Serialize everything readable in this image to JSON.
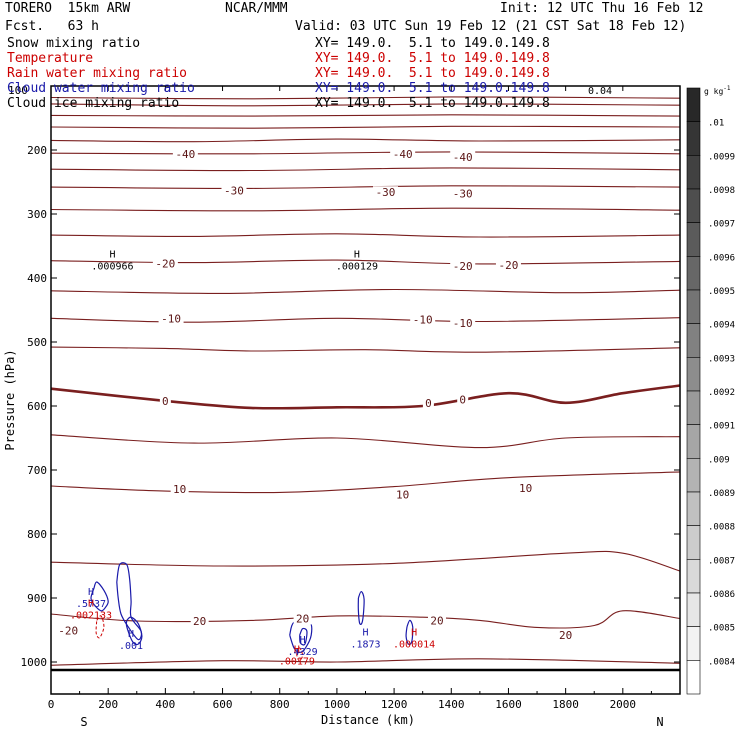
{
  "header": {
    "model": "TORERO  15km ARW",
    "center": "NCAR/MMM",
    "init": "Init: 12 UTC Thu 16 Feb 12",
    "fcst": "Fcst.   63 h",
    "valid": "Valid: 03 UTC Sun 19 Feb 12 (21 CST Sat 18 Feb 12)"
  },
  "fields": [
    {
      "name": "Snow mixing ratio",
      "color": "#000000",
      "xy": "XY= 149.0.  5.1 to 149.0.149.8"
    },
    {
      "name": "Temperature",
      "color": "#cc0000",
      "xy": "XY= 149.0.  5.1 to 149.0.149.8"
    },
    {
      "name": "Rain water mixing ratio",
      "color": "#cc0000",
      "xy": "XY= 149.0.  5.1 to 149.0.149.8"
    },
    {
      "name": "Cloud water mixing ratio",
      "color": "#1a1aaa",
      "xy": "XY= 149.0.  5.1 to 149.0.149.8"
    },
    {
      "name": "Cloud ice mixing ratio",
      "color": "#000000",
      "xy": "XY= 149.0.  5.1 to 149.0.149.8"
    }
  ],
  "overlap_text": {
    "left": "100",
    "right": "0.04"
  },
  "chart_data": {
    "type": "contour-cross-section",
    "xlabel": "Distance (km)",
    "ylabel": "Pressure (hPa)",
    "xlim": [
      0,
      2200
    ],
    "ylim": [
      1050,
      100
    ],
    "xticks": [
      0,
      200,
      400,
      600,
      800,
      1000,
      1200,
      1400,
      1600,
      1800,
      2000
    ],
    "yticks": [
      200,
      300,
      400,
      500,
      600,
      700,
      800,
      900,
      1000
    ],
    "endpoints": {
      "left": "S",
      "right": "N"
    },
    "colorbar": {
      "unit": "g kg",
      "unit_exp": "-1",
      "labels": [
        ".01",
        ".0099",
        ".0098",
        ".0097",
        ".0096",
        ".0095",
        ".0094",
        ".0093",
        ".0092",
        ".0091",
        ".009",
        ".0089",
        ".0088",
        ".0087",
        ".0086",
        ".0085",
        ".0084"
      ]
    },
    "isotherms": [
      {
        "points": [
          [
            0,
            118
          ],
          [
            700,
            120
          ],
          [
            1400,
            117
          ],
          [
            2200,
            119
          ]
        ]
      },
      {
        "points": [
          [
            0,
            128
          ],
          [
            700,
            131
          ],
          [
            1400,
            128
          ],
          [
            2200,
            130
          ]
        ]
      },
      {
        "points": [
          [
            0,
            146
          ],
          [
            700,
            147
          ],
          [
            1400,
            145
          ],
          [
            2200,
            147
          ]
        ]
      },
      {
        "points": [
          [
            0,
            164
          ],
          [
            700,
            166
          ],
          [
            1400,
            163
          ],
          [
            2200,
            164
          ]
        ]
      },
      {
        "points": [
          [
            0,
            185
          ],
          [
            500,
            187
          ],
          [
            1000,
            183
          ],
          [
            1500,
            186
          ],
          [
            2200,
            184
          ]
        ]
      },
      {
        "points": [
          [
            0,
            205
          ],
          [
            700,
            206
          ],
          [
            1400,
            203
          ],
          [
            2200,
            206
          ]
        ]
      },
      {
        "points": [
          [
            0,
            230
          ],
          [
            700,
            232
          ],
          [
            1400,
            228
          ],
          [
            2200,
            231
          ]
        ]
      },
      {
        "points": [
          [
            0,
            258
          ],
          [
            700,
            260
          ],
          [
            1400,
            256
          ],
          [
            2200,
            258
          ]
        ]
      },
      {
        "points": [
          [
            0,
            293
          ],
          [
            700,
            295
          ],
          [
            1400,
            291
          ],
          [
            2200,
            294
          ]
        ]
      },
      {
        "points": [
          [
            0,
            333
          ],
          [
            500,
            335
          ],
          [
            1000,
            331
          ],
          [
            1500,
            336
          ],
          [
            2200,
            333
          ]
        ]
      },
      {
        "points": [
          [
            0,
            373
          ],
          [
            500,
            376
          ],
          [
            1000,
            372
          ],
          [
            1500,
            378
          ],
          [
            2200,
            374
          ]
        ]
      },
      {
        "points": [
          [
            0,
            420
          ],
          [
            600,
            424
          ],
          [
            1200,
            418
          ],
          [
            1800,
            423
          ],
          [
            2200,
            419
          ]
        ]
      },
      {
        "points": [
          [
            0,
            463
          ],
          [
            500,
            469
          ],
          [
            1000,
            463
          ],
          [
            1500,
            468
          ],
          [
            2200,
            462
          ]
        ]
      },
      {
        "points": [
          [
            0,
            508
          ],
          [
            400,
            510
          ],
          [
            700,
            514
          ],
          [
            1100,
            512
          ],
          [
            1500,
            516
          ],
          [
            2200,
            509
          ]
        ]
      },
      {
        "points": [
          [
            0,
            573
          ],
          [
            400,
            592
          ],
          [
            700,
            603
          ],
          [
            1000,
            602
          ],
          [
            1300,
            600
          ],
          [
            1600,
            580
          ],
          [
            1800,
            595
          ],
          [
            2000,
            580
          ],
          [
            2200,
            568
          ]
        ],
        "bold": true
      },
      {
        "points": [
          [
            0,
            645
          ],
          [
            500,
            658
          ],
          [
            1000,
            650
          ],
          [
            1500,
            665
          ],
          [
            1800,
            650
          ],
          [
            2200,
            648
          ]
        ]
      },
      {
        "points": [
          [
            0,
            725
          ],
          [
            400,
            733
          ],
          [
            800,
            735
          ],
          [
            1200,
            726
          ],
          [
            1600,
            712
          ],
          [
            2200,
            703
          ]
        ]
      },
      {
        "points": [
          [
            0,
            844
          ],
          [
            600,
            850
          ],
          [
            1200,
            846
          ],
          [
            1800,
            830
          ],
          [
            2000,
            830
          ],
          [
            2200,
            858
          ]
        ]
      },
      {
        "points": [
          [
            0,
            925
          ],
          [
            300,
            936
          ],
          [
            700,
            935
          ],
          [
            1000,
            928
          ],
          [
            1300,
            930
          ],
          [
            1500,
            935
          ],
          [
            1700,
            946
          ],
          [
            1900,
            943
          ],
          [
            2000,
            920
          ],
          [
            2200,
            932
          ]
        ]
      },
      {
        "points": [
          [
            0,
            1005
          ],
          [
            600,
            998
          ],
          [
            1000,
            1000
          ],
          [
            1500,
            995
          ],
          [
            2200,
            1002
          ]
        ]
      }
    ],
    "isotherm_labels": [
      {
        "text": "-40",
        "x": 470,
        "p": 206
      },
      {
        "text": "-40",
        "x": 1230,
        "p": 206
      },
      {
        "text": "-40",
        "x": 1440,
        "p": 211
      },
      {
        "text": "-30",
        "x": 640,
        "p": 263
      },
      {
        "text": "-30",
        "x": 1170,
        "p": 266
      },
      {
        "text": "-30",
        "x": 1440,
        "p": 268
      },
      {
        "text": "-20",
        "x": 400,
        "p": 377
      },
      {
        "text": "-20",
        "x": 1440,
        "p": 381
      },
      {
        "text": "-20",
        "x": 1600,
        "p": 380
      },
      {
        "text": "-10",
        "x": 420,
        "p": 463
      },
      {
        "text": "-10",
        "x": 1300,
        "p": 465
      },
      {
        "text": "-10",
        "x": 1440,
        "p": 470
      },
      {
        "text": "0",
        "x": 400,
        "p": 592
      },
      {
        "text": "0",
        "x": 1320,
        "p": 595
      },
      {
        "text": "0",
        "x": 1440,
        "p": 590
      },
      {
        "text": "10",
        "x": 450,
        "p": 730
      },
      {
        "text": "10",
        "x": 1230,
        "p": 738
      },
      {
        "text": "10",
        "x": 1660,
        "p": 728
      },
      {
        "text": "-20",
        "x": 60,
        "p": 951
      },
      {
        "text": "20",
        "x": 520,
        "p": 936
      },
      {
        "text": "20",
        "x": 880,
        "p": 932
      },
      {
        "text": "20",
        "x": 1350,
        "p": 935
      },
      {
        "text": "20",
        "x": 1800,
        "p": 958
      }
    ],
    "maxima": [
      {
        "mark": "H",
        "value": ".000966",
        "x": 215,
        "p": 373,
        "color": "#000000"
      },
      {
        "mark": "H",
        "value": ".000129",
        "x": 1070,
        "p": 373,
        "color": "#000000"
      },
      {
        "mark": "H",
        "value": ".5737",
        "x": 140,
        "p": 900,
        "color": "#1a1aaa"
      },
      {
        "mark": "H",
        "value": ".002133",
        "x": 140,
        "p": 918,
        "color": "#cc0000"
      },
      {
        "mark": "H",
        "value": ".001",
        "x": 280,
        "p": 966,
        "color": "#1a1aaa"
      },
      {
        "mark": "H",
        "value": ".4329",
        "x": 880,
        "p": 975,
        "color": "#1a1aaa"
      },
      {
        "mark": "H",
        "value": ".00179",
        "x": 860,
        "p": 990,
        "color": "#cc0000"
      },
      {
        "mark": "H",
        "value": ".1873",
        "x": 1100,
        "p": 963,
        "color": "#1a1aaa"
      },
      {
        "mark": "H",
        "value": ".000014",
        "x": 1270,
        "p": 963,
        "color": "#cc0000"
      }
    ],
    "cloud_contours": [
      {
        "points": [
          [
            150,
            885
          ],
          [
            160,
            875
          ],
          [
            185,
            888
          ],
          [
            200,
            905
          ],
          [
            190,
            915
          ],
          [
            175,
            920
          ],
          [
            150,
            910
          ],
          [
            140,
            900
          ],
          [
            150,
            885
          ]
        ]
      },
      {
        "points": [
          [
            230,
            875
          ],
          [
            240,
            848
          ],
          [
            265,
            848
          ],
          [
            275,
            870
          ],
          [
            280,
            905
          ],
          [
            280,
            930
          ],
          [
            315,
            952
          ],
          [
            305,
            965
          ],
          [
            270,
            945
          ],
          [
            245,
            925
          ],
          [
            235,
            900
          ],
          [
            230,
            875
          ]
        ]
      },
      {
        "points": [
          [
            265,
            935
          ],
          [
            280,
            930
          ],
          [
            305,
            940
          ],
          [
            318,
            960
          ],
          [
            305,
            972
          ],
          [
            285,
            968
          ],
          [
            265,
            945
          ],
          [
            265,
            935
          ]
        ]
      },
      {
        "points": [
          [
            835,
            958
          ],
          [
            850,
            938
          ],
          [
            905,
            938
          ],
          [
            910,
            958
          ],
          [
            890,
            978
          ],
          [
            870,
            985
          ],
          [
            850,
            978
          ],
          [
            835,
            958
          ]
        ]
      },
      {
        "points": [
          [
            870,
            958
          ],
          [
            880,
            948
          ],
          [
            895,
            952
          ],
          [
            888,
            972
          ],
          [
            872,
            970
          ],
          [
            870,
            958
          ]
        ]
      },
      {
        "points": [
          [
            1075,
            900
          ],
          [
            1085,
            890
          ],
          [
            1095,
            902
          ],
          [
            1090,
            935
          ],
          [
            1080,
            940
          ],
          [
            1075,
            920
          ],
          [
            1075,
            900
          ]
        ]
      },
      {
        "points": [
          [
            1245,
            945
          ],
          [
            1255,
            935
          ],
          [
            1265,
            945
          ],
          [
            1262,
            968
          ],
          [
            1250,
            972
          ],
          [
            1242,
            960
          ],
          [
            1245,
            945
          ]
        ]
      }
    ],
    "rain_contours": [
      {
        "points": [
          [
            160,
            935
          ],
          [
            175,
            928
          ],
          [
            185,
            945
          ],
          [
            170,
            962
          ],
          [
            158,
            955
          ],
          [
            160,
            935
          ]
        ]
      },
      {
        "points": [
          [
            860,
            985
          ],
          [
            870,
            978
          ],
          [
            880,
            990
          ],
          [
            868,
            998
          ],
          [
            860,
            990
          ],
          [
            860,
            985
          ]
        ]
      }
    ]
  }
}
